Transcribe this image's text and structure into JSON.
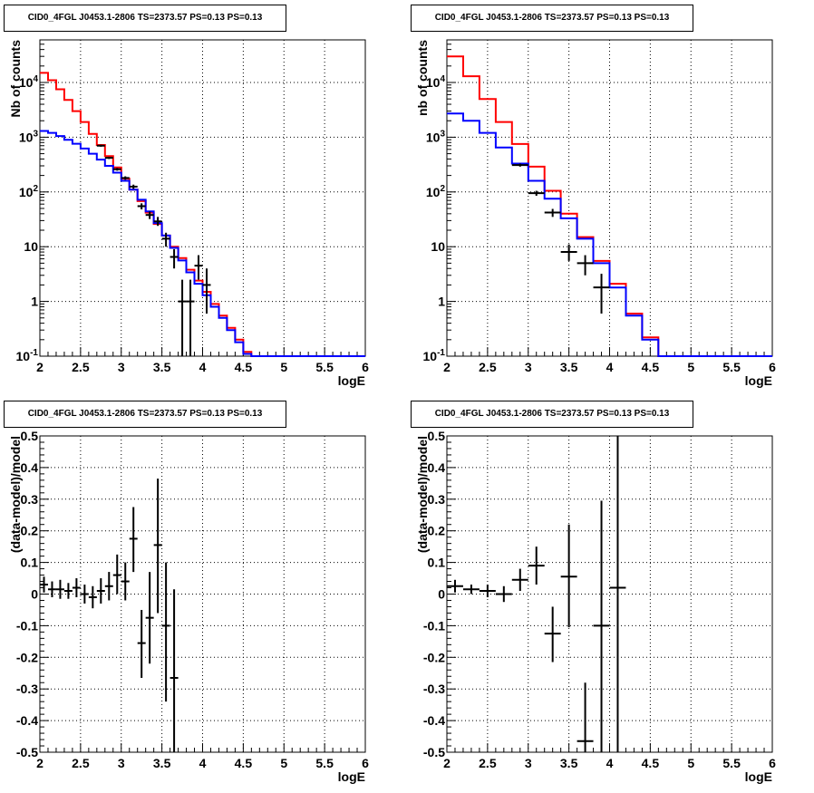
{
  "chart_data": [
    {
      "type": "step",
      "title": "CID0_4FGL J0453.1-2806 TS=2373.57 PS=0.13 PS=0.13",
      "xlabel": "logE",
      "ylabel": "Nb of counts",
      "xlim": [
        2,
        6
      ],
      "ylim": [
        0.1,
        60000
      ],
      "yscale": "log",
      "grid": true,
      "x_ticks": [
        "2",
        "2.5",
        "3",
        "3.5",
        "4",
        "4.5",
        "5",
        "5.5",
        "6"
      ],
      "y_ticks": [
        "10^-1",
        "1",
        "10",
        "10^2",
        "10^3",
        "10^4"
      ],
      "bin_edges": [
        2.0,
        2.1,
        2.2,
        2.3,
        2.4,
        2.5,
        2.6,
        2.7,
        2.8,
        2.9,
        3.0,
        3.1,
        3.2,
        3.3,
        3.4,
        3.5,
        3.6,
        3.7,
        3.8,
        3.9,
        4.0,
        4.1,
        4.2,
        4.3,
        4.4,
        4.5,
        4.6,
        4.7,
        4.8,
        4.9,
        5.0,
        5.1,
        5.2,
        5.3,
        5.4,
        5.5,
        5.6,
        5.7,
        5.8,
        5.9,
        6.0
      ],
      "series": [
        {
          "color": "#ff0000",
          "values": [
            15000,
            11000,
            7500,
            4800,
            3000,
            1900,
            1150,
            720,
            450,
            280,
            175,
            110,
            68,
            42,
            26,
            16,
            10,
            6.2,
            3.8,
            2.4,
            1.5,
            0.9,
            0.55,
            0.33,
            0.2,
            0.12,
            0.1,
            0.1,
            0.1,
            0.1,
            0.1,
            0.1,
            0.1,
            0.1,
            0.1,
            0.1,
            0.1,
            0.1,
            0.1,
            0.1
          ]
        },
        {
          "color": "#0000ff",
          "values": [
            1300,
            1200,
            1050,
            900,
            760,
            620,
            500,
            390,
            300,
            225,
            160,
            110,
            72,
            44,
            27,
            16,
            9.5,
            5.6,
            3.4,
            2.1,
            1.3,
            0.8,
            0.5,
            0.3,
            0.18,
            0.11,
            0.1,
            0.1,
            0.1,
            0.1,
            0.1,
            0.1,
            0.1,
            0.1,
            0.1,
            0.1,
            0.1,
            0.1,
            0.1,
            0.1
          ]
        }
      ],
      "points": [
        {
          "x": 2.75,
          "y": 700,
          "xerr": 0.05,
          "ylo": 670,
          "yhi": 730
        },
        {
          "x": 2.85,
          "y": 420,
          "xerr": 0.05,
          "ylo": 400,
          "yhi": 440
        },
        {
          "x": 2.95,
          "y": 260,
          "xerr": 0.05,
          "ylo": 245,
          "yhi": 275
        },
        {
          "x": 3.05,
          "y": 180,
          "xerr": 0.05,
          "ylo": 167,
          "yhi": 193
        },
        {
          "x": 3.15,
          "y": 125,
          "xerr": 0.05,
          "ylo": 114,
          "yhi": 136
        },
        {
          "x": 3.25,
          "y": 55,
          "xerr": 0.05,
          "ylo": 48,
          "yhi": 62
        },
        {
          "x": 3.35,
          "y": 38,
          "xerr": 0.05,
          "ylo": 32,
          "yhi": 44
        },
        {
          "x": 3.45,
          "y": 29,
          "xerr": 0.05,
          "ylo": 24,
          "yhi": 35
        },
        {
          "x": 3.55,
          "y": 14,
          "xerr": 0.05,
          "ylo": 10,
          "yhi": 18
        },
        {
          "x": 3.65,
          "y": 6.5,
          "xerr": 0.05,
          "ylo": 4,
          "yhi": 9
        },
        {
          "x": 3.75,
          "y": 1,
          "xerr": 0.05,
          "ylo": 0.1,
          "yhi": 2.5
        },
        {
          "x": 3.85,
          "y": 1,
          "xerr": 0.05,
          "ylo": 0.1,
          "yhi": 2.5
        },
        {
          "x": 3.95,
          "y": 4.5,
          "xerr": 0.05,
          "ylo": 2.5,
          "yhi": 7
        },
        {
          "x": 4.05,
          "y": 2,
          "xerr": 0.05,
          "ylo": 0.6,
          "yhi": 4
        }
      ]
    },
    {
      "type": "step",
      "title": "CID0_4FGL J0453.1-2806 TS=2373.57 PS=0.13 PS=0.13",
      "xlabel": "logE",
      "ylabel": "nb of counts",
      "xlim": [
        2,
        6
      ],
      "ylim": [
        0.1,
        60000
      ],
      "yscale": "log",
      "grid": true,
      "x_ticks": [
        "2",
        "2.5",
        "3",
        "3.5",
        "4",
        "4.5",
        "5",
        "5.5",
        "6"
      ],
      "y_ticks": [
        "10^-1",
        "1",
        "10",
        "10^2",
        "10^3",
        "10^4"
      ],
      "bin_edges": [
        2.0,
        2.2,
        2.4,
        2.6,
        2.8,
        3.0,
        3.2,
        3.4,
        3.6,
        3.8,
        4.0,
        4.2,
        4.4,
        4.6,
        4.8,
        5.0,
        5.2,
        5.4,
        5.6,
        5.8,
        6.0
      ],
      "series": [
        {
          "color": "#ff0000",
          "values": [
            30000,
            13000,
            5000,
            1900,
            750,
            290,
            105,
            40,
            15,
            5.5,
            2.1,
            0.6,
            0.22,
            0.1,
            0.1,
            0.1,
            0.1,
            0.1,
            0.1,
            0.1
          ]
        },
        {
          "color": "#0000ff",
          "values": [
            2700,
            2000,
            1200,
            650,
            330,
            160,
            75,
            33,
            14,
            5,
            1.8,
            0.55,
            0.2,
            0.1,
            0.1,
            0.1,
            0.1,
            0.1,
            0.1,
            0.1
          ]
        }
      ],
      "points": [
        {
          "x": 2.9,
          "y": 310,
          "xerr": 0.1,
          "ylo": 290,
          "yhi": 330
        },
        {
          "x": 3.1,
          "y": 95,
          "xerr": 0.1,
          "ylo": 85,
          "yhi": 105
        },
        {
          "x": 3.3,
          "y": 42,
          "xerr": 0.1,
          "ylo": 35,
          "yhi": 49
        },
        {
          "x": 3.5,
          "y": 8,
          "xerr": 0.1,
          "ylo": 5.5,
          "yhi": 11
        },
        {
          "x": 3.7,
          "y": 5,
          "xerr": 0.1,
          "ylo": 3,
          "yhi": 7
        },
        {
          "x": 3.9,
          "y": 1.8,
          "xerr": 0.1,
          "ylo": 0.6,
          "yhi": 3.2
        }
      ]
    },
    {
      "type": "scatter",
      "title": "CID0_4FGL J0453.1-2806 TS=2373.57 PS=0.13 PS=0.13",
      "xlabel": "logE",
      "ylabel": "(data-model)/model",
      "xlim": [
        2,
        6
      ],
      "ylim": [
        -0.5,
        0.5
      ],
      "grid": true,
      "x_ticks": [
        "2",
        "2.5",
        "3",
        "3.5",
        "4",
        "4.5",
        "5",
        "5.5",
        "6"
      ],
      "y_ticks": [
        "-0.5",
        "-0.4",
        "-0.3",
        "-0.2",
        "-0.1",
        "0",
        "0.1",
        "0.2",
        "0.3",
        "0.4",
        "0.5"
      ],
      "points": [
        {
          "x": 2.05,
          "y": 0.03,
          "xerr": 0.05,
          "ylo": 0.005,
          "yhi": 0.055
        },
        {
          "x": 2.15,
          "y": 0.015,
          "xerr": 0.05,
          "ylo": -0.01,
          "yhi": 0.04
        },
        {
          "x": 2.25,
          "y": 0.015,
          "xerr": 0.05,
          "ylo": -0.015,
          "yhi": 0.045
        },
        {
          "x": 2.35,
          "y": 0.01,
          "xerr": 0.05,
          "ylo": -0.015,
          "yhi": 0.035
        },
        {
          "x": 2.45,
          "y": 0.02,
          "xerr": 0.05,
          "ylo": -0.01,
          "yhi": 0.05
        },
        {
          "x": 2.55,
          "y": 0.0,
          "xerr": 0.05,
          "ylo": -0.03,
          "yhi": 0.03
        },
        {
          "x": 2.65,
          "y": -0.01,
          "xerr": 0.05,
          "ylo": -0.045,
          "yhi": 0.025
        },
        {
          "x": 2.75,
          "y": 0.01,
          "xerr": 0.05,
          "ylo": -0.03,
          "yhi": 0.05
        },
        {
          "x": 2.85,
          "y": 0.025,
          "xerr": 0.05,
          "ylo": -0.02,
          "yhi": 0.07
        },
        {
          "x": 2.95,
          "y": 0.06,
          "xerr": 0.05,
          "ylo": 0.0,
          "yhi": 0.125
        },
        {
          "x": 3.05,
          "y": 0.04,
          "xerr": 0.05,
          "ylo": -0.02,
          "yhi": 0.1
        },
        {
          "x": 3.15,
          "y": 0.175,
          "xerr": 0.05,
          "ylo": 0.07,
          "yhi": 0.275
        },
        {
          "x": 3.25,
          "y": -0.155,
          "xerr": 0.05,
          "ylo": -0.265,
          "yhi": -0.05
        },
        {
          "x": 3.35,
          "y": -0.075,
          "xerr": 0.05,
          "ylo": -0.22,
          "yhi": 0.07
        },
        {
          "x": 3.45,
          "y": 0.155,
          "xerr": 0.05,
          "ylo": -0.06,
          "yhi": 0.365
        },
        {
          "x": 3.55,
          "y": -0.1,
          "xerr": 0.05,
          "ylo": -0.34,
          "yhi": 0.1
        },
        {
          "x": 3.65,
          "y": -0.265,
          "xerr": 0.05,
          "ylo": -0.5,
          "yhi": 0.015
        }
      ]
    },
    {
      "type": "scatter",
      "title": "CID0_4FGL J0453.1-2806 TS=2373.57 PS=0.13 PS=0.13",
      "xlabel": "logE",
      "ylabel": "(data-model)/model",
      "xlim": [
        2,
        6
      ],
      "ylim": [
        -0.5,
        0.5
      ],
      "grid": true,
      "x_ticks": [
        "2",
        "2.5",
        "3",
        "3.5",
        "4",
        "4.5",
        "5",
        "5.5",
        "6"
      ],
      "y_ticks": [
        "-0.5",
        "-0.4",
        "-0.3",
        "-0.2",
        "-0.1",
        "0",
        "0.1",
        "0.2",
        "0.3",
        "0.4",
        "0.5"
      ],
      "points": [
        {
          "x": 2.1,
          "y": 0.025,
          "xerr": 0.1,
          "ylo": 0.005,
          "yhi": 0.045
        },
        {
          "x": 2.3,
          "y": 0.015,
          "xerr": 0.1,
          "ylo": 0.0,
          "yhi": 0.03
        },
        {
          "x": 2.5,
          "y": 0.01,
          "xerr": 0.1,
          "ylo": -0.01,
          "yhi": 0.03
        },
        {
          "x": 2.7,
          "y": 0.0,
          "xerr": 0.1,
          "ylo": -0.025,
          "yhi": 0.025
        },
        {
          "x": 2.9,
          "y": 0.045,
          "xerr": 0.1,
          "ylo": 0.01,
          "yhi": 0.08
        },
        {
          "x": 3.1,
          "y": 0.09,
          "xerr": 0.1,
          "ylo": 0.03,
          "yhi": 0.15
        },
        {
          "x": 3.3,
          "y": -0.125,
          "xerr": 0.1,
          "ylo": -0.215,
          "yhi": -0.04
        },
        {
          "x": 3.5,
          "y": 0.055,
          "xerr": 0.1,
          "ylo": -0.105,
          "yhi": 0.22
        },
        {
          "x": 3.7,
          "y": -0.465,
          "xerr": 0.1,
          "ylo": -0.5,
          "yhi": -0.28
        },
        {
          "x": 3.9,
          "y": -0.1,
          "xerr": 0.1,
          "ylo": -0.5,
          "yhi": 0.295
        },
        {
          "x": 4.1,
          "y": 0.02,
          "xerr": 0.1,
          "ylo": -0.5,
          "yhi": 0.5
        }
      ]
    }
  ]
}
